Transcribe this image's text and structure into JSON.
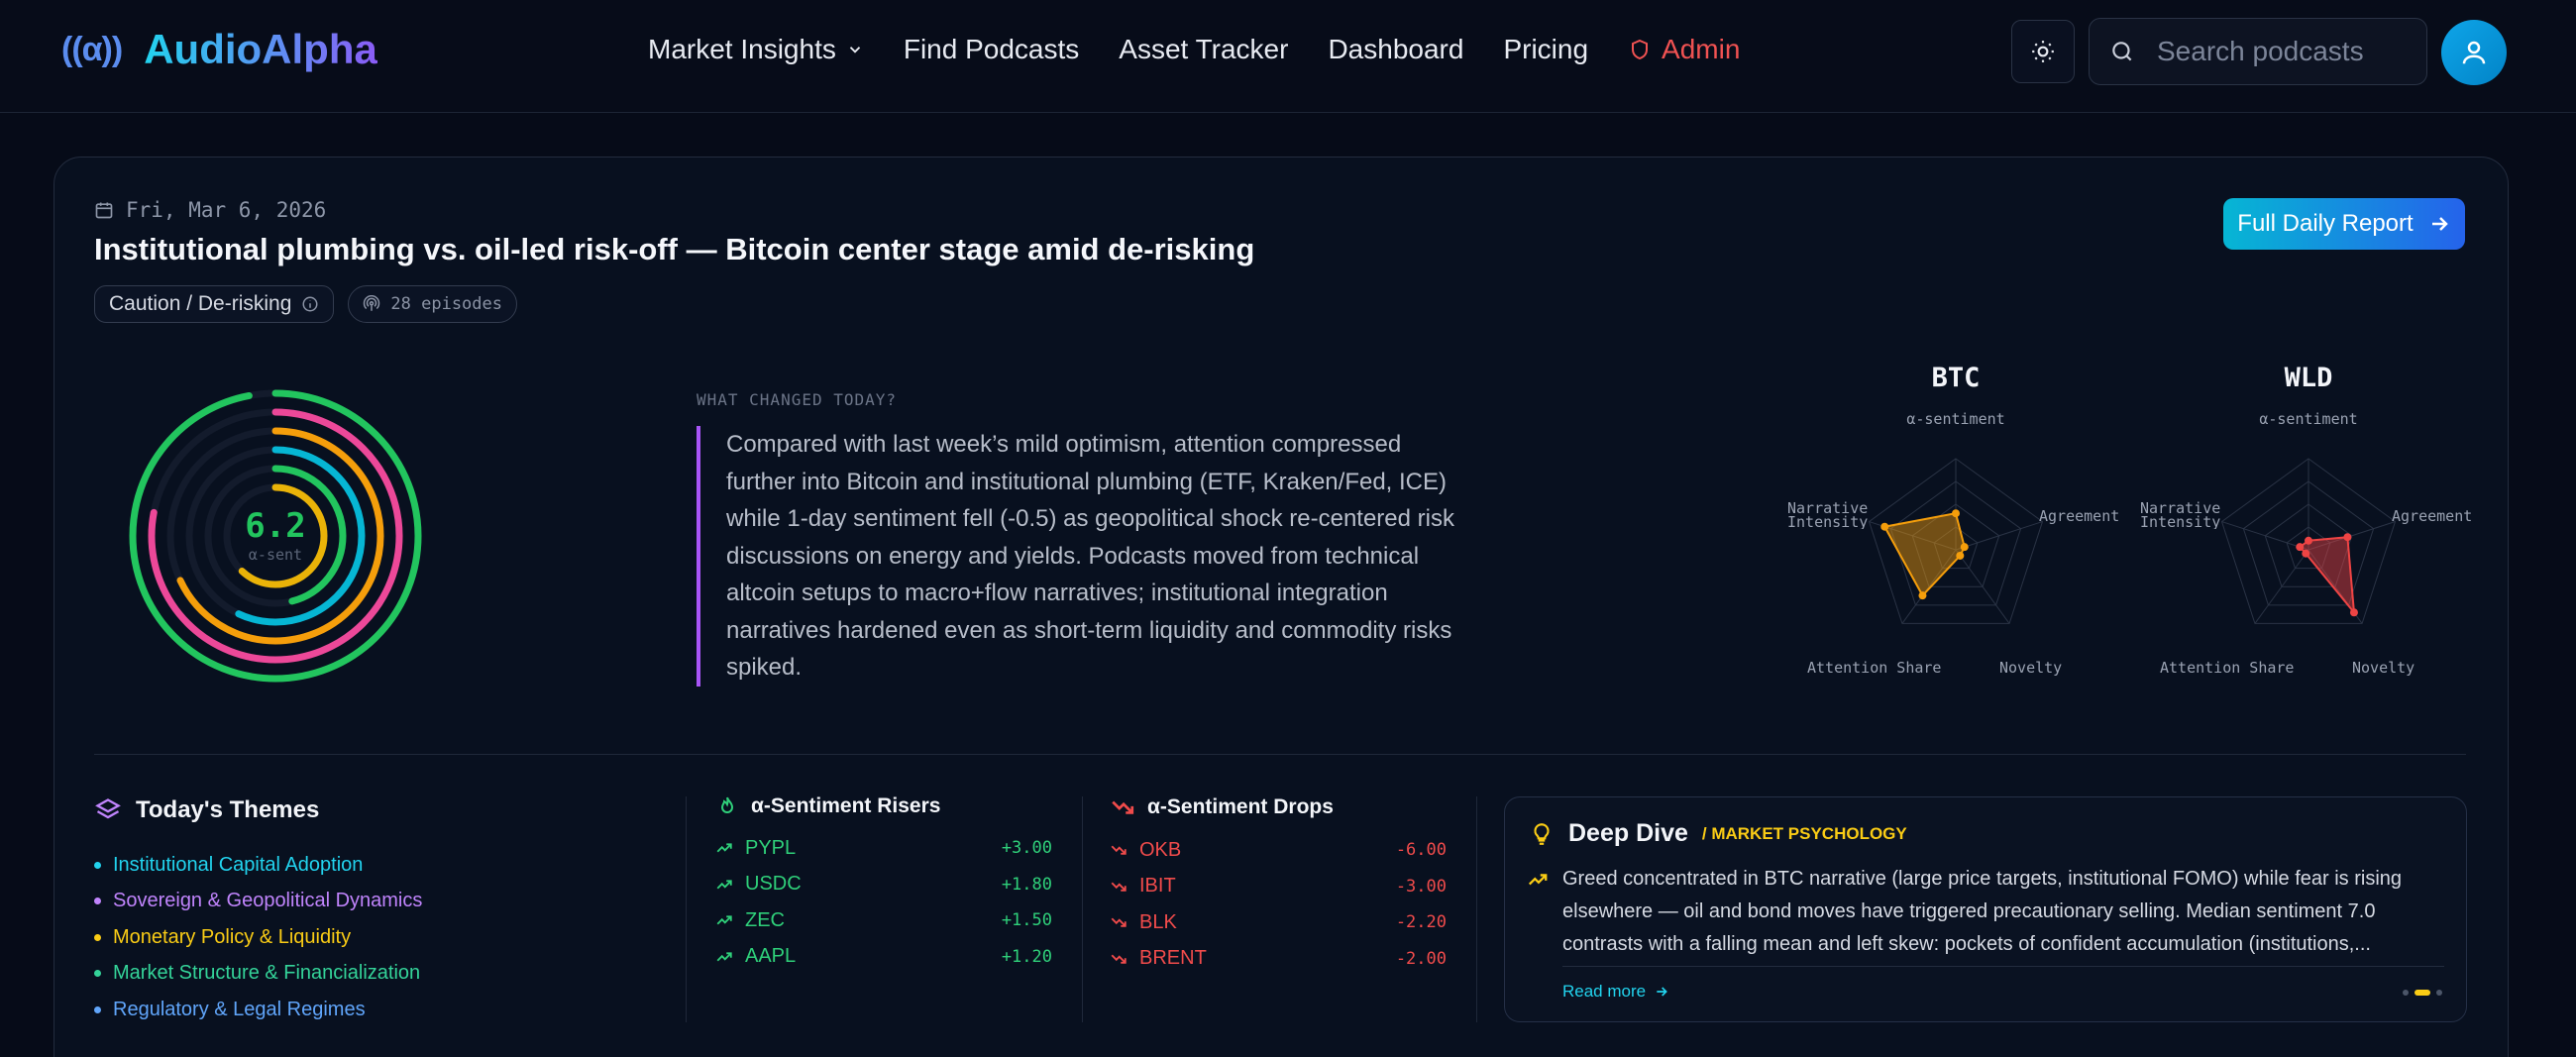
{
  "brand": {
    "name": "AudioAlpha",
    "mark": "((α))"
  },
  "nav": {
    "items": [
      "Market Insights",
      "Find Podcasts",
      "Asset Tracker",
      "Dashboard",
      "Pricing",
      "Admin"
    ]
  },
  "search": {
    "placeholder": "Search podcasts"
  },
  "report": {
    "date": "Fri, Mar 6, 2026",
    "headline": "Institutional plumbing vs. oil-led risk-off — Bitcoin center stage amid de-risking",
    "mood_chip": "Caution / De-risking",
    "episodes_chip": "28 episodes",
    "full_report_label": "Full Daily Report"
  },
  "gauge": {
    "value": "6.2",
    "label": "α-sent",
    "colors": [
      "#22c55e",
      "#ec4899",
      "#f59e0b",
      "#06b6d4",
      "#22c55e",
      "#eab308"
    ]
  },
  "what_changed": {
    "label": "WHAT CHANGED TODAY?",
    "body": "Compared with last week’s mild optimism, attention compressed further into Bitcoin and institutional plumbing (ETF, Kraken/Fed, ICE) while 1-day sentiment fell (-0.5) as geopolitical shock re-centered risk discussions on energy and yields. Podcasts moved from technical altcoin setups to macro+flow narratives; institutional integration narratives hardened even as short-term liquidity and commodity risks spiked."
  },
  "radars": [
    {
      "ticker": "BTC",
      "color": "#f59e0b",
      "axes": [
        "α-sentiment",
        "Agreement",
        "Novelty",
        "Attention Share",
        "Narrative Intensity"
      ],
      "values": [
        0.4,
        0.1,
        0.08,
        0.62,
        0.82
      ]
    },
    {
      "ticker": "WLD",
      "color": "#ef4444",
      "axes": [
        "α-sentiment",
        "Agreement",
        "Novelty",
        "Attention Share",
        "Narrative Intensity"
      ],
      "values": [
        0.1,
        0.45,
        0.85,
        0.05,
        0.1
      ]
    }
  ],
  "themes": {
    "title": "Today's Themes",
    "items": [
      {
        "label": "Institutional Capital Adoption",
        "color": "#22d3ee"
      },
      {
        "label": "Sovereign & Geopolitical Dynamics",
        "color": "#c084fc"
      },
      {
        "label": "Monetary Policy & Liquidity",
        "color": "#facc15"
      },
      {
        "label": "Market Structure & Financialization",
        "color": "#34d399"
      },
      {
        "label": "Regulatory & Legal Regimes",
        "color": "#60a5fa"
      }
    ]
  },
  "risers": {
    "title": "α-Sentiment Risers",
    "rows": [
      {
        "ticker": "PYPL",
        "value": "+3.00"
      },
      {
        "ticker": "USDC",
        "value": "+1.80"
      },
      {
        "ticker": "ZEC",
        "value": "+1.50"
      },
      {
        "ticker": "AAPL",
        "value": "+1.20"
      }
    ]
  },
  "drops": {
    "title": "α-Sentiment Drops",
    "rows": [
      {
        "ticker": "OKB",
        "value": "-6.00"
      },
      {
        "ticker": "IBIT",
        "value": "-3.00"
      },
      {
        "ticker": "BLK",
        "value": "-2.20"
      },
      {
        "ticker": "BRENT",
        "value": "-2.00"
      }
    ]
  },
  "deep_dive": {
    "title": "Deep Dive",
    "tag": "/ MARKET PSYCHOLOGY",
    "body": "Greed concentrated in BTC narrative (large price targets, institutional FOMO) while fear is rising elsewhere — oil and bond moves have triggered precautionary selling. Median sentiment 7.0 contrasts with a falling mean and left skew: pockets of confident accumulation (institutions,...",
    "more": "Read more"
  }
}
